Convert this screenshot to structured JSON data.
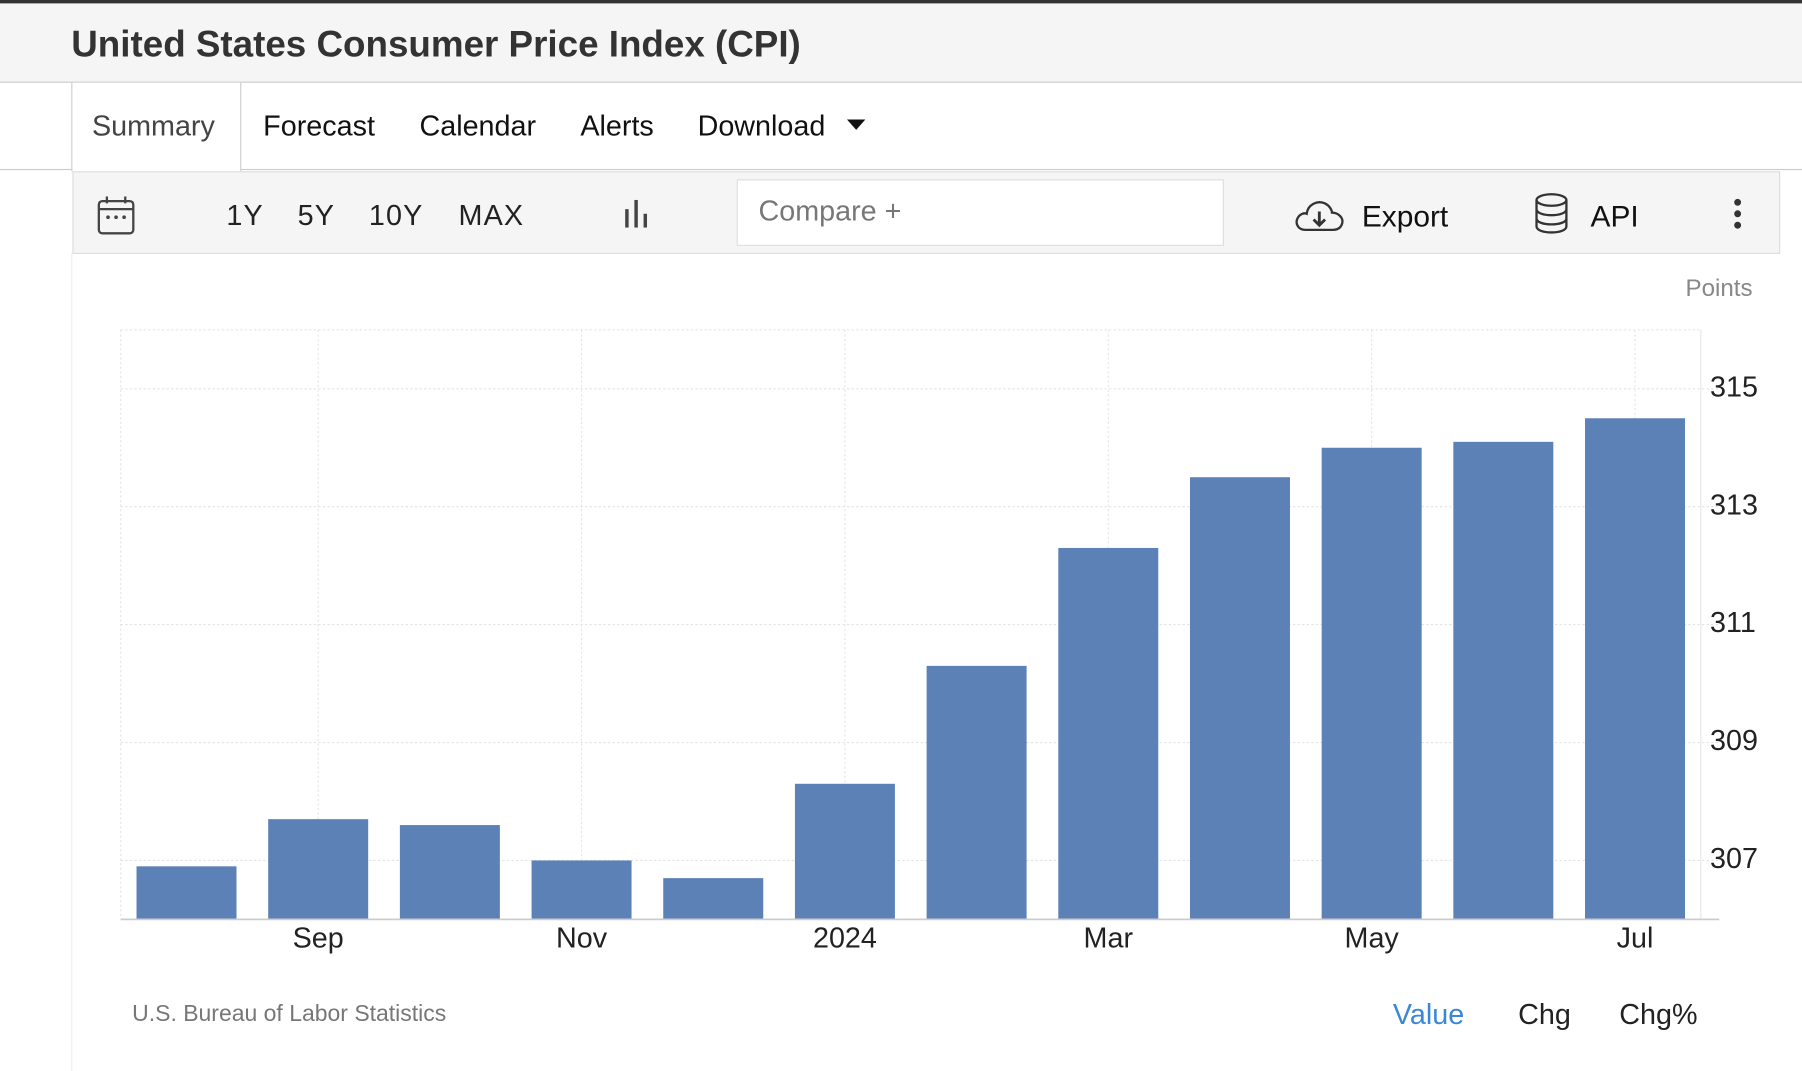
{
  "header": {
    "title": "United States Consumer Price Index (CPI)"
  },
  "tabs": [
    "Summary",
    "Forecast",
    "Calendar",
    "Alerts",
    "Download"
  ],
  "active_tab": 0,
  "toolbar": {
    "ranges": [
      "1Y",
      "5Y",
      "10Y",
      "MAX"
    ],
    "compare": "Compare +",
    "export": "Export",
    "api": "API"
  },
  "chart_data": {
    "type": "bar",
    "unit": "Points",
    "categories": [
      null,
      "Sep",
      null,
      "Nov",
      null,
      "2024",
      null,
      "Mar",
      null,
      "May",
      null,
      "Jul"
    ],
    "values": [
      306.9,
      307.7,
      307.6,
      307.0,
      306.7,
      308.3,
      310.3,
      312.3,
      313.5,
      314.0,
      314.1,
      314.5
    ],
    "color": "#5b81b7",
    "ylim": [
      306,
      316
    ],
    "yticks": [
      307,
      309,
      311,
      313,
      315
    ],
    "grid": true,
    "source": "U.S. Bureau of Labor Statistics"
  },
  "footer": {
    "modes": [
      "Value",
      "Chg",
      "Chg%"
    ],
    "active_mode": 0
  }
}
